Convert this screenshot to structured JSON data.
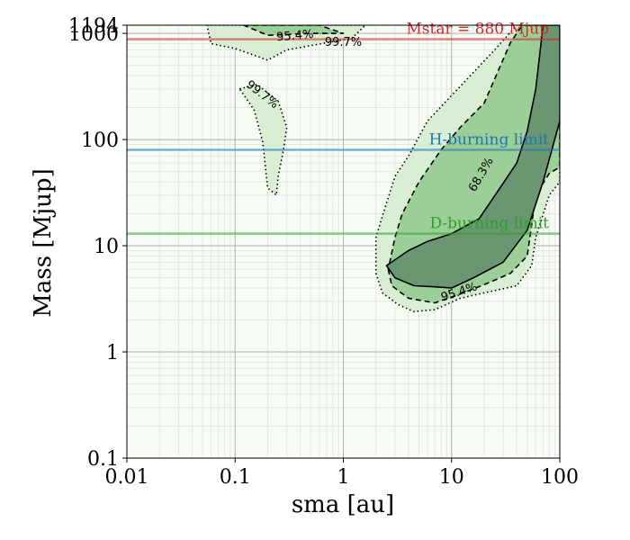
{
  "chart_data": {
    "type": "contour",
    "xlabel": "sma [au]",
    "ylabel": "Mass [Mjup]",
    "x_scale": "log",
    "y_scale": "log",
    "xlim": [
      0.01,
      100
    ],
    "ylim": [
      0.1,
      1194
    ],
    "x_ticks": [
      {
        "value": 0.01,
        "label": "0.01"
      },
      {
        "value": 0.1,
        "label": "0.1"
      },
      {
        "value": 1,
        "label": "1"
      },
      {
        "value": 10,
        "label": "10"
      },
      {
        "value": 100,
        "label": "100"
      }
    ],
    "y_ticks": [
      {
        "value": 0.1,
        "label": "0.1"
      },
      {
        "value": 1,
        "label": "1"
      },
      {
        "value": 10,
        "label": "10"
      },
      {
        "value": 100,
        "label": "100"
      },
      {
        "value": 1000,
        "label": "1000"
      },
      {
        "value": 1194,
        "label": "1194"
      }
    ],
    "grid": true,
    "reference_lines": [
      {
        "label": "Mstar = 880 Mjup",
        "mass": 880,
        "color": "#d62728"
      },
      {
        "label": "H-burning limit",
        "mass": 80,
        "color": "#1f77b4"
      },
      {
        "label": "D-burning limit",
        "mass": 13,
        "color": "#2ca02c"
      }
    ],
    "contours": [
      {
        "label": "99.7%",
        "style": "dotted",
        "fill": "#d9efd3",
        "regions": [
          [
            [
              2,
              5.5
            ],
            [
              2.3,
              3.6
            ],
            [
              3.2,
              2.8
            ],
            [
              4.5,
              2.4
            ],
            [
              7,
              2.5
            ],
            [
              12,
              3.2
            ],
            [
              20,
              3.6
            ],
            [
              40,
              4.2
            ],
            [
              55,
              6.5
            ],
            [
              60,
              12
            ],
            [
              80,
              30
            ],
            [
              100,
              40
            ],
            [
              100,
              1194
            ],
            [
              40,
              1194
            ],
            [
              25,
              700
            ],
            [
              10,
              260
            ],
            [
              6,
              150
            ],
            [
              4,
              70
            ],
            [
              3,
              45
            ],
            [
              2.4,
              22
            ],
            [
              2,
              12
            ]
          ],
          [
            [
              0.055,
              1194
            ],
            [
              0.2,
              1194
            ],
            [
              0.3,
              1194
            ],
            [
              0.6,
              1000
            ],
            [
              0.8,
              1000
            ],
            [
              0.5,
              1194
            ],
            [
              1.6,
              1194
            ],
            [
              1.2,
              900
            ],
            [
              0.3,
              700
            ],
            [
              0.2,
              560
            ],
            [
              0.1,
              720
            ],
            [
              0.06,
              800
            ]
          ],
          [
            [
              0.11,
              300
            ],
            [
              0.16,
              330
            ],
            [
              0.25,
              230
            ],
            [
              0.3,
              130
            ],
            [
              0.28,
              80
            ],
            [
              0.25,
              45
            ],
            [
              0.24,
              30
            ],
            [
              0.2,
              35
            ],
            [
              0.18,
              95
            ],
            [
              0.15,
              190
            ]
          ]
        ]
      },
      {
        "label": "95.4%",
        "style": "dashed",
        "fill": "#9ccf97",
        "regions": [
          [
            [
              2.6,
              6
            ],
            [
              2.8,
              4.2
            ],
            [
              4,
              3.2
            ],
            [
              7,
              2.9
            ],
            [
              12,
              3.5
            ],
            [
              20,
              4.3
            ],
            [
              35,
              5.5
            ],
            [
              50,
              8
            ],
            [
              55,
              16
            ],
            [
              60,
              30
            ],
            [
              80,
              48
            ],
            [
              100,
              55
            ],
            [
              100,
              1194
            ],
            [
              45,
              1194
            ],
            [
              35,
              820
            ],
            [
              20,
              220
            ],
            [
              12,
              130
            ],
            [
              8,
              80
            ],
            [
              5,
              40
            ],
            [
              3.5,
              20
            ],
            [
              3,
              12
            ]
          ],
          [
            [
              0.12,
              1194
            ],
            [
              0.6,
              1194
            ],
            [
              1,
              1000
            ],
            [
              0.5,
              1000
            ],
            [
              0.2,
              960
            ]
          ]
        ]
      },
      {
        "label": "68.3%",
        "style": "solid",
        "fill": "#6a9672",
        "regions": [
          [
            [
              2.5,
              6.5
            ],
            [
              3,
              5
            ],
            [
              4.5,
              4.2
            ],
            [
              7,
              4.1
            ],
            [
              10,
              4
            ],
            [
              16,
              5
            ],
            [
              30,
              7
            ],
            [
              50,
              14
            ],
            [
              70,
              40
            ],
            [
              100,
              150
            ],
            [
              100,
              1194
            ],
            [
              70,
              1194
            ],
            [
              60,
              300
            ],
            [
              50,
              120
            ],
            [
              40,
              60
            ],
            [
              28,
              35
            ],
            [
              18,
              18
            ],
            [
              10,
              13
            ],
            [
              6,
              11
            ],
            [
              4,
              9
            ]
          ]
        ]
      }
    ],
    "contour_labels": [
      {
        "text": "95.4%",
        "x": 0.36,
        "y": 880,
        "rotate": -5
      },
      {
        "text": "99.7%",
        "x": 1.0,
        "y": 760,
        "rotate": 0
      },
      {
        "text": "99.7%",
        "x": 0.17,
        "y": 250,
        "rotate": 38
      },
      {
        "text": "68.3%",
        "x": 20,
        "y": 45,
        "rotate": -60
      },
      {
        "text": "95.4%",
        "x": 12,
        "y": 3.4,
        "rotate": -18
      }
    ]
  }
}
